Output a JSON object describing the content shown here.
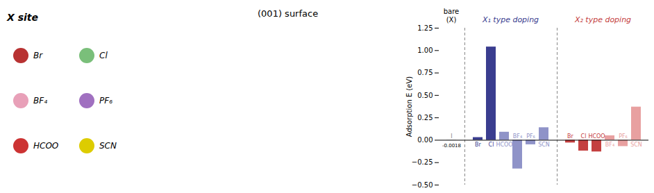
{
  "chart_data": {
    "type": "bar",
    "ylabel": "Adsorption E (eV)",
    "ylim": [
      -0.5,
      1.25
    ],
    "yticks": [
      {
        "value": -0.5,
        "label": "−0.50"
      },
      {
        "value": -0.25,
        "label": "−0.25"
      },
      {
        "value": 0,
        "label": "0.00"
      },
      {
        "value": 0.25,
        "label": "0.25"
      },
      {
        "value": 0.5,
        "label": "0.50"
      },
      {
        "value": 0.75,
        "label": "0.75"
      },
      {
        "value": 1,
        "label": "1.00"
      },
      {
        "value": 1.25,
        "label": "1.25"
      }
    ],
    "grid": false,
    "groups": [
      {
        "label": [
          "bare",
          "(X)"
        ],
        "color": "#000000",
        "categories": [
          "I"
        ],
        "values": [
          -0.0018
        ],
        "colors": [
          "#888888"
        ],
        "value_labels": [
          "-0.0018"
        ]
      },
      {
        "label": [
          "X₁ type doping"
        ],
        "color": "#3a3d8f",
        "categories": [
          "Br",
          "Cl",
          "HCOO",
          "BF₄",
          "PF₆",
          "SCN"
        ],
        "values": [
          0.03,
          1.04,
          0.09,
          -0.32,
          -0.05,
          0.14
        ],
        "colors": [
          "#3a3d8f",
          "#3a3d8f",
          "#8f93c8",
          "#8f93c8",
          "#8f93c8",
          "#8f93c8"
        ]
      },
      {
        "label": [
          "X₂ type doping"
        ],
        "color": "#c44040",
        "categories": [
          "Br",
          "Cl",
          "HCOO",
          "BF₄",
          "PF₆",
          "SCN"
        ],
        "values": [
          -0.03,
          -0.12,
          -0.13,
          0.05,
          -0.07,
          0.37
        ],
        "colors": [
          "#c44040",
          "#c44040",
          "#c44040",
          "#e8a0a0",
          "#e8a0a0",
          "#e8a0a0"
        ]
      }
    ],
    "legend_panel": {
      "title": "X site",
      "entries": [
        {
          "text": "Br",
          "color": "#b83232"
        },
        {
          "text": "Cl",
          "color": "#7abf7a"
        },
        {
          "text": "BF₄",
          "color": "#e8a0b8"
        },
        {
          "text": "PF₆",
          "color": "#a070c0"
        },
        {
          "text": "HCOO",
          "color": "#cc3333"
        },
        {
          "text": "SCN",
          "color": "#ddcc00"
        }
      ]
    },
    "annotations": [
      {
        "text": "(001) surface"
      }
    ]
  }
}
